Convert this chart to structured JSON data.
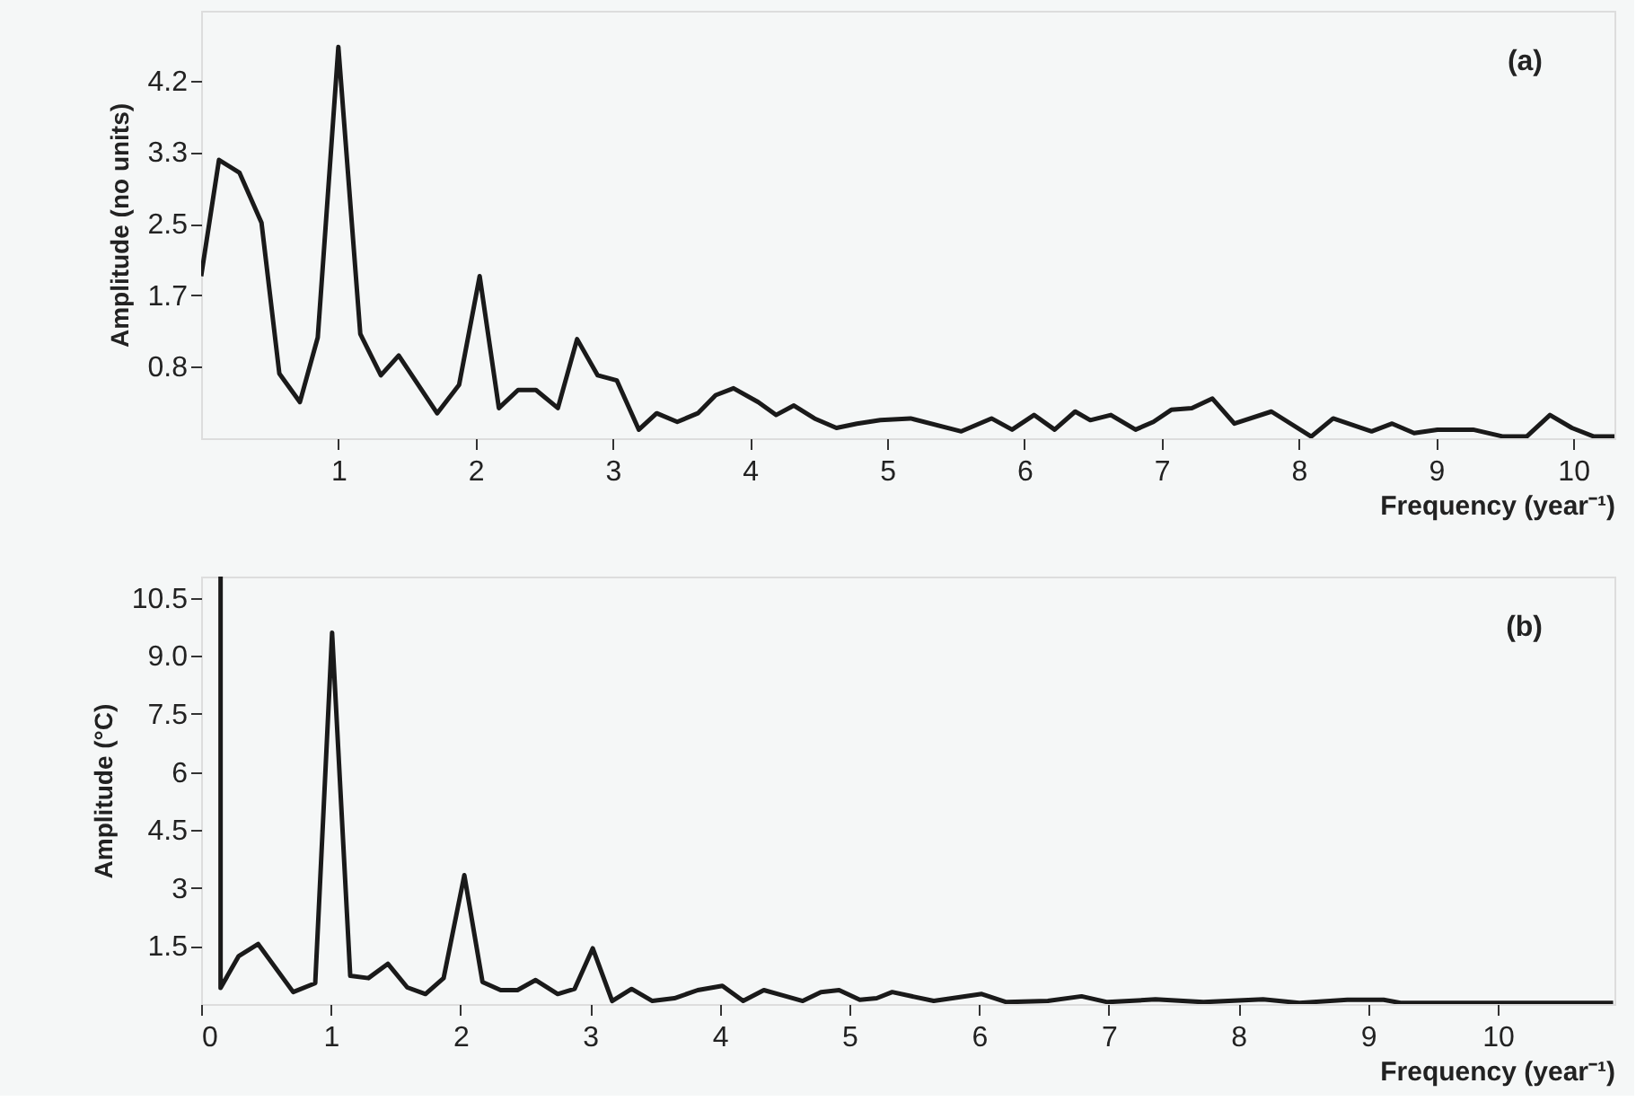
{
  "chart_data": [
    {
      "type": "line",
      "xlabel": "Frequency (year⁻¹)",
      "ylabel": "Amplitude (no units)",
      "annotations": [
        "(a)"
      ],
      "grid": false,
      "legend": false,
      "xlim": [
        0,
        10.3
      ],
      "xticks": [
        1,
        2,
        3,
        4,
        5,
        6,
        7,
        8,
        9,
        10
      ],
      "ylim": [
        0,
        4.96
      ],
      "yticks": [
        {
          "value": 0.83,
          "label": "0.8"
        },
        {
          "value": 1.66,
          "label": "1.7"
        },
        {
          "value": 2.49,
          "label": "2.5"
        },
        {
          "value": 3.32,
          "label": "3.3"
        },
        {
          "value": 4.15,
          "label": "4.2"
        }
      ],
      "series": [
        {
          "color": "#1a1a1a",
          "x": [
            0,
            0.13,
            0.28,
            0.44,
            0.57,
            0.72,
            0.85,
            1.0,
            1.16,
            1.31,
            1.44,
            1.72,
            1.88,
            2.03,
            2.17,
            2.31,
            2.44,
            2.6,
            2.74,
            2.89,
            3.03,
            3.19,
            3.32,
            3.47,
            3.62,
            3.75,
            3.88,
            4.06,
            4.19,
            4.32,
            4.47,
            4.63,
            4.78,
            4.95,
            5.17,
            5.54,
            5.76,
            5.91,
            6.07,
            6.22,
            6.37,
            6.48,
            6.63,
            6.81,
            6.94,
            7.07,
            7.22,
            7.37,
            7.53,
            7.8,
            8.09,
            8.25,
            8.53,
            8.68,
            8.84,
            9.01,
            9.27,
            9.49,
            9.66,
            9.83,
            9.99,
            10.15,
            10.3
          ],
          "values": [
            1.88,
            3.23,
            3.08,
            2.5,
            0.75,
            0.42,
            1.17,
            4.54,
            1.21,
            0.73,
            0.96,
            0.29,
            0.62,
            1.88,
            0.35,
            0.56,
            0.56,
            0.35,
            1.15,
            0.73,
            0.67,
            0.1,
            0.29,
            0.19,
            0.29,
            0.5,
            0.58,
            0.42,
            0.27,
            0.38,
            0.23,
            0.12,
            0.17,
            0.21,
            0.23,
            0.08,
            0.23,
            0.1,
            0.27,
            0.1,
            0.31,
            0.21,
            0.27,
            0.1,
            0.19,
            0.33,
            0.35,
            0.46,
            0.17,
            0.31,
            0.02,
            0.23,
            0.08,
            0.17,
            0.06,
            0.1,
            0.1,
            0.02,
            0.02,
            0.27,
            0.12,
            0.02,
            0.02
          ]
        }
      ]
    },
    {
      "type": "line",
      "xlabel": "Frequency (year⁻¹)",
      "ylabel": "Amplitude (°C)",
      "annotations": [
        "(b)"
      ],
      "grid": false,
      "legend": false,
      "xlim": [
        0,
        10.9
      ],
      "xticks": [
        0,
        1,
        2,
        3,
        4,
        5,
        6,
        7,
        8,
        9,
        10
      ],
      "ylim": [
        0,
        11.05
      ],
      "yticks": [
        1.5,
        3,
        4.5,
        6,
        7.5,
        {
          "value": 9,
          "label": "9.0"
        },
        10.5
      ],
      "series": [
        {
          "color": "#1a1a1a",
          "x": [
            0.15,
            0.15,
            0.29,
            0.44,
            0.71,
            0.88,
            1.01,
            1.15,
            1.29,
            1.44,
            1.59,
            1.73,
            1.87,
            2.03,
            2.17,
            2.31,
            2.44,
            2.58,
            2.75,
            2.88,
            3.02,
            3.17,
            3.32,
            3.48,
            3.65,
            3.83,
            4.02,
            4.18,
            4.34,
            4.48,
            4.64,
            4.78,
            4.92,
            5.08,
            5.21,
            5.33,
            5.65,
            6.02,
            6.21,
            6.53,
            6.79,
            6.99,
            7.36,
            7.73,
            8.19,
            8.47,
            8.84,
            9.12,
            9.25,
            10.89
          ],
          "values": [
            11.05,
            0.42,
            1.24,
            1.55,
            0.31,
            0.54,
            9.6,
            0.73,
            0.67,
            1.04,
            0.43,
            0.26,
            0.67,
            3.33,
            0.57,
            0.36,
            0.36,
            0.62,
            0.26,
            0.39,
            1.44,
            0.08,
            0.39,
            0.08,
            0.15,
            0.36,
            0.47,
            0.08,
            0.36,
            0.23,
            0.08,
            0.31,
            0.36,
            0.11,
            0.15,
            0.31,
            0.08,
            0.26,
            0.05,
            0.08,
            0.2,
            0.05,
            0.12,
            0.05,
            0.12,
            0.03,
            0.11,
            0.11,
            0.03,
            0.03
          ]
        }
      ]
    }
  ]
}
